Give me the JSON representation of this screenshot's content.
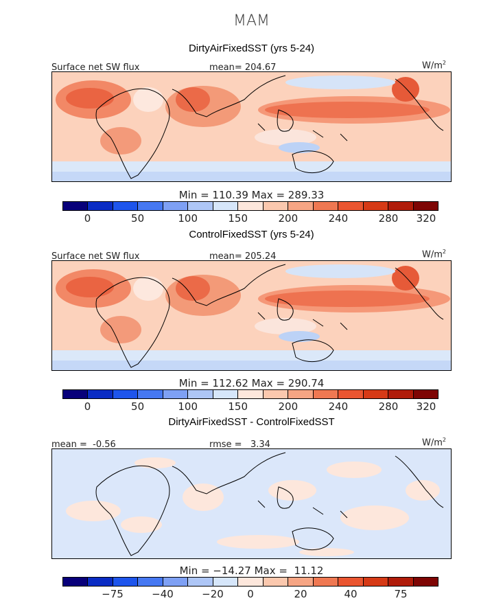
{
  "season": "MAM",
  "panels": [
    {
      "title": "DirtyAirFixedSST (yrs 5-24)",
      "left_label": "Surface net SW flux",
      "center_label": "mean= 204.67",
      "units_main": "W/m",
      "units_sup": "2",
      "minmax": "Min = 110.39 Max = 289.33",
      "colorbar_ticks": [
        "0",
        "50",
        "100",
        "150",
        "200",
        "240",
        "280",
        "320"
      ]
    },
    {
      "title": "ControlFixedSST (yrs 5-24)",
      "left_label": "Surface net SW flux",
      "center_label": "mean= 205.24",
      "units_main": "W/m",
      "units_sup": "2",
      "minmax": "Min = 112.62 Max = 290.74",
      "colorbar_ticks": [
        "0",
        "50",
        "100",
        "150",
        "200",
        "240",
        "280",
        "320"
      ]
    },
    {
      "title": "DirtyAirFixedSST - ControlFixedSST",
      "left_label": "mean =  -0.56",
      "center_label": "rmse =   3.34",
      "units_main": "W/m",
      "units_sup": "2",
      "minmax": "Min = −14.27 Max =  11.12",
      "colorbar_ticks": [
        "−75",
        "−40",
        "−20",
        "0",
        "20",
        "40",
        "75"
      ]
    }
  ],
  "colorbar_colors": [
    "#08007a",
    "#0a2cc4",
    "#1e55ec",
    "#4678f2",
    "#7ea0f4",
    "#aec6f6",
    "#d6e6fa",
    "#fde7dc",
    "#fbc8ae",
    "#f6a584",
    "#ef7852",
    "#ea5530",
    "#d63a16",
    "#b01c0a",
    "#7e0504"
  ]
}
